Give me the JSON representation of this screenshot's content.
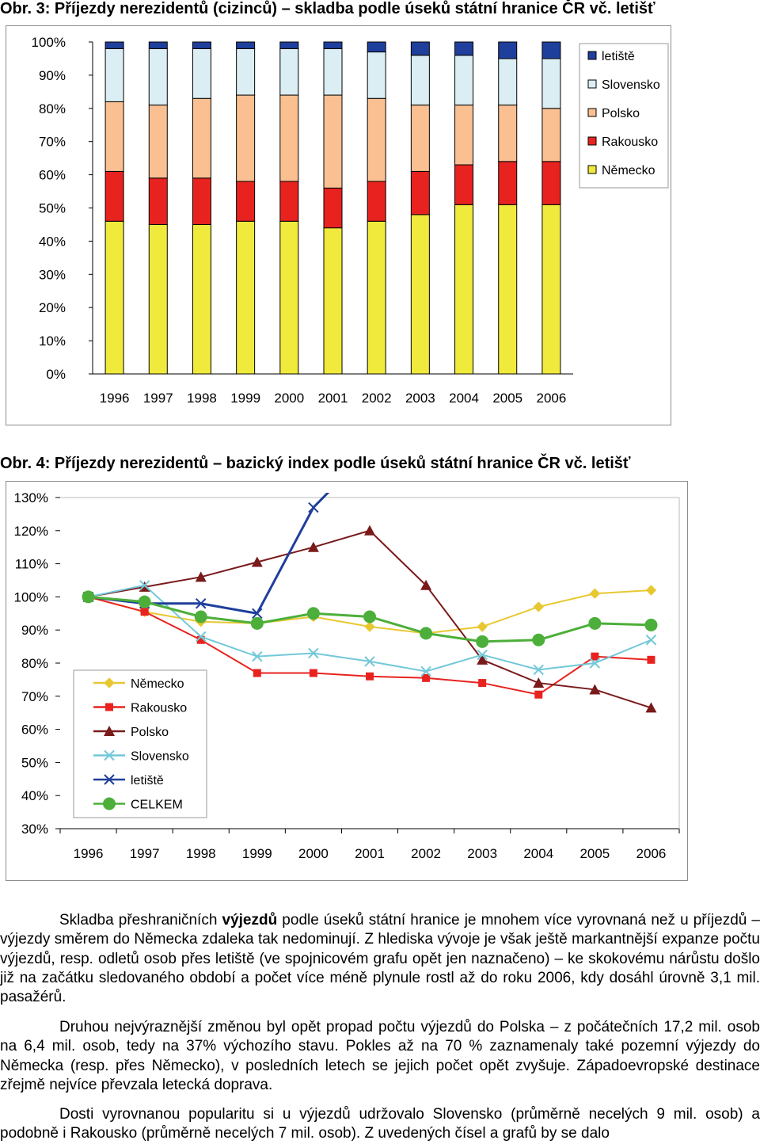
{
  "chart_data": [
    {
      "type": "bar",
      "stacked": true,
      "normalized": true,
      "title": "Obr. 3: Příjezdy nerezidentů (cizinců) – skladba podle úseků státní hranice ČR vč. letišť",
      "categories": [
        "1996",
        "1997",
        "1998",
        "1999",
        "2000",
        "2001",
        "2002",
        "2003",
        "2004",
        "2005",
        "2006"
      ],
      "ylim": [
        0,
        100
      ],
      "yticks": [
        "0%",
        "10%",
        "20%",
        "30%",
        "40%",
        "50%",
        "60%",
        "70%",
        "80%",
        "90%",
        "100%"
      ],
      "legend_position": "right",
      "series": [
        {
          "name": "Německo",
          "color": "#f0ea3c",
          "values": [
            46,
            45,
            45,
            46,
            46,
            44,
            46,
            48,
            51,
            51,
            51
          ]
        },
        {
          "name": "Rakousko",
          "color": "#e8231f",
          "values": [
            15,
            14,
            14,
            12,
            12,
            12,
            12,
            13,
            12,
            13,
            13
          ]
        },
        {
          "name": "Polsko",
          "color": "#fac092",
          "values": [
            21,
            22,
            24,
            26,
            26,
            28,
            25,
            20,
            18,
            17,
            16
          ]
        },
        {
          "name": "Slovensko",
          "color": "#daeef3",
          "values": [
            16,
            17,
            15,
            14,
            14,
            14,
            14,
            15,
            15,
            14,
            15
          ]
        },
        {
          "name": "letiště",
          "color": "#1f3f9c",
          "values": [
            2,
            2,
            2,
            2,
            2,
            2,
            3,
            4,
            4,
            5,
            5
          ]
        }
      ]
    },
    {
      "type": "line",
      "title": "Obr. 4: Příjezdy nerezidentů – bazický index podle úseků státní hranice ČR vč. letišť",
      "categories": [
        "1996",
        "1997",
        "1998",
        "1999",
        "2000",
        "2001",
        "2002",
        "2003",
        "2004",
        "2005",
        "2006"
      ],
      "ylim": [
        30,
        130
      ],
      "yticks": [
        "30%",
        "40%",
        "50%",
        "60%",
        "70%",
        "80%",
        "90%",
        "100%",
        "110%",
        "120%",
        "130%"
      ],
      "legend_position": "left",
      "series": [
        {
          "name": "Německo",
          "color": "#e8c832",
          "marker": "diamond",
          "values": [
            100,
            95.5,
            92.5,
            92,
            94,
            91,
            89,
            91,
            97,
            101,
            102
          ]
        },
        {
          "name": "Rakousko",
          "color": "#e8231f",
          "marker": "square",
          "values": [
            100,
            95.5,
            87,
            77,
            77,
            76,
            75.5,
            74,
            70.5,
            82,
            81
          ]
        },
        {
          "name": "Polsko",
          "color": "#7a1a1a",
          "marker": "triangle",
          "values": [
            100,
            103,
            106,
            110.5,
            115,
            120,
            103.5,
            81,
            74,
            72,
            66.5
          ]
        },
        {
          "name": "Slovensko",
          "color": "#72c8d8",
          "marker": "x",
          "values": [
            100,
            103.5,
            88,
            82,
            83,
            80.5,
            77.5,
            82.5,
            78,
            80,
            87
          ]
        },
        {
          "name": "letiště",
          "color": "#1f3f9c",
          "marker": "x",
          "values": [
            100,
            98,
            98,
            95,
            127,
            null,
            null,
            null,
            null,
            null,
            null
          ]
        },
        {
          "name": "CELKEM",
          "color": "#4caf3a",
          "marker": "circle",
          "values": [
            100,
            98.5,
            94,
            92,
            95,
            94,
            89,
            86.5,
            87,
            92,
            91.5
          ]
        }
      ]
    }
  ],
  "text": {
    "p1": [
      {
        "t": "Skladba přeshraničních "
      },
      {
        "t": "výjezdů",
        "b": true
      },
      {
        "t": " podle úseků státní hranice je mnohem více vyrovnaná než u příjezdů – výjezdy směrem do Německa zdaleka tak nedominují. Z hlediska vývoje je však ještě markantnější expanze počtu výjezdů, resp. odletů osob přes letiště (ve spojnicovém grafu opět jen naznačeno) – ke skokovému nárůstu došlo již na začátku sledovaného období a počet více méně plynule rostl až do roku 2006, kdy dosáhl úrovně 3,1 mil. pasažérů."
      }
    ],
    "p2": "Druhou nejvýraznější změnou byl opět propad počtu výjezdů do Polska – z počátečních 17,2 mil. osob na 6,4 mil. osob, tedy na 37% výchozího stavu. Pokles až na 70 % zaznamenaly také pozemní výjezdy do Německa (resp. přes Německo), v posledních letech se jejich počet opět zvyšuje. Západoevropské destinace zřejmě nejvíce převzala letecká doprava.",
    "p3": "Dosti vyrovnanou popularitu si u výjezdů udržovalo Slovensko (průměrně necelých 9 mil. osob) a podobně i Rakousko (průměrně necelých 7 mil. osob). Z uvedených čísel a grafů by se dalo"
  }
}
